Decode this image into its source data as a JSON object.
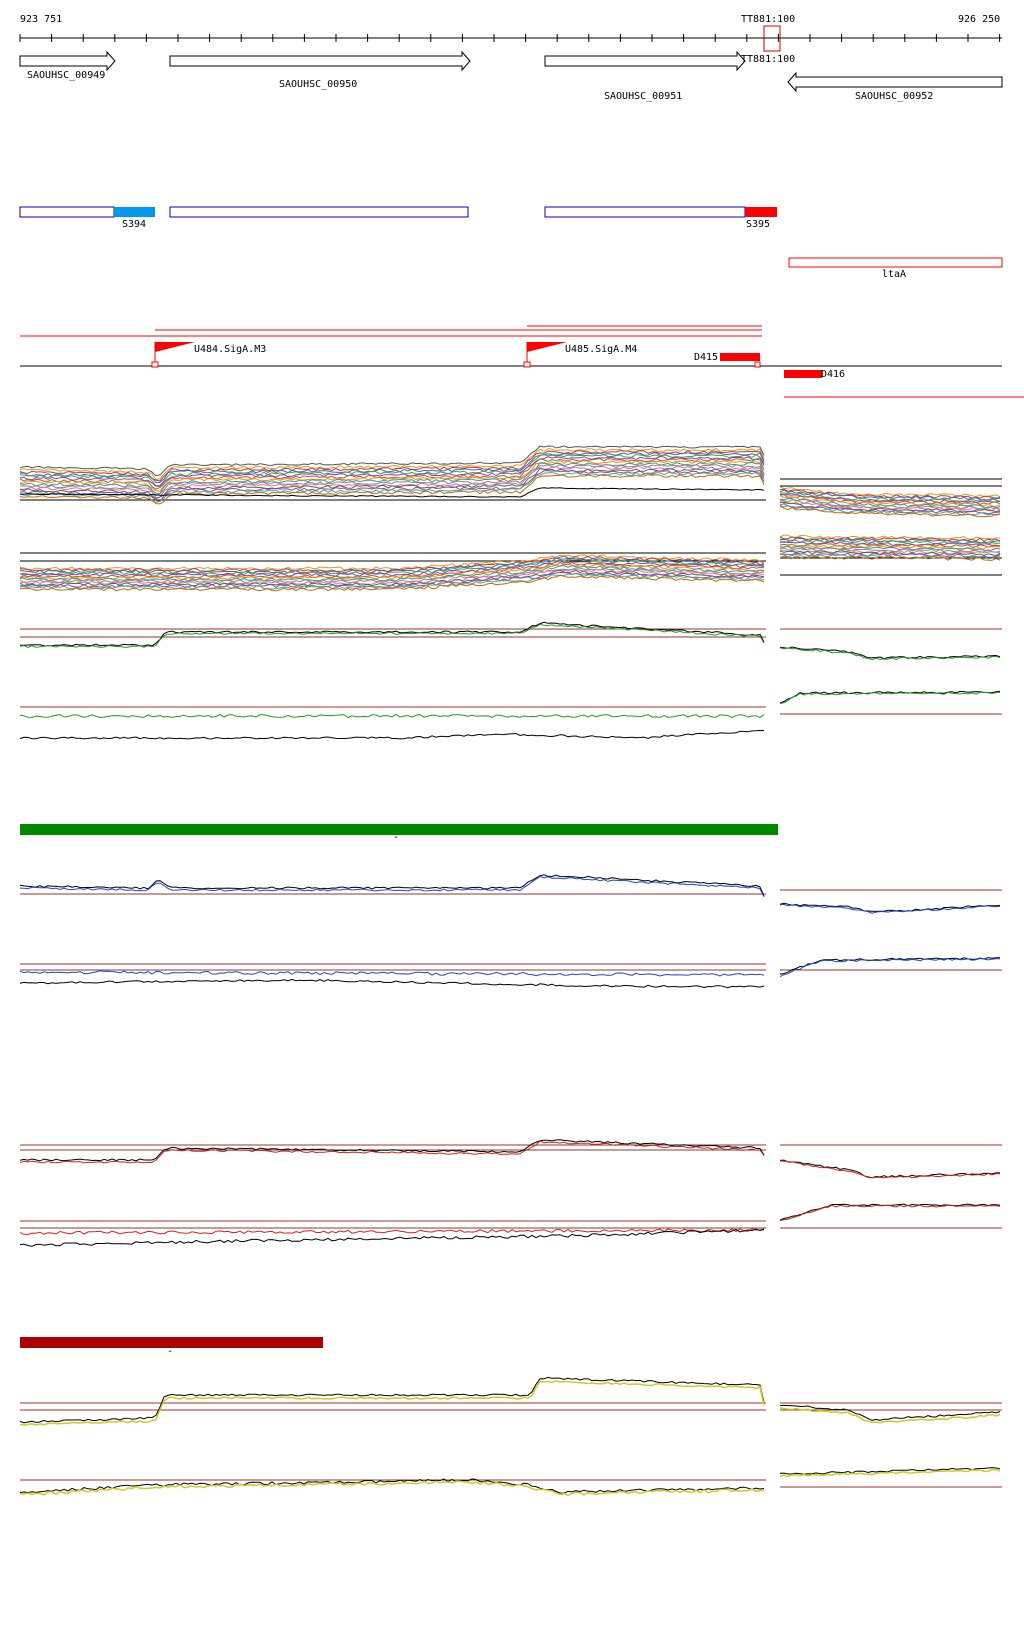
{
  "coordinates": {
    "start": "923 751",
    "end": "926 250",
    "terminator_top": "TT881:100",
    "terminator_bottom": "TT881:100"
  },
  "genes": [
    {
      "label": "SAOUHSC_00949",
      "strand": "+"
    },
    {
      "label": "SAOUHSC_00950",
      "strand": "+"
    },
    {
      "label": "SAOUHSC_00951",
      "strand": "+"
    },
    {
      "label": "SAOUHSC_00952",
      "strand": "-"
    }
  ],
  "segments": [
    {
      "label": "S394",
      "color": "#0099ee"
    },
    {
      "label": "S395",
      "color": "#ff0000"
    },
    {
      "label": "ltaA",
      "color": "#ff0000"
    }
  ],
  "promoters": [
    {
      "label": "U484.SigA.M3"
    },
    {
      "label": "U485.SigA.M4"
    }
  ],
  "downregulated": [
    {
      "label": "D415"
    },
    {
      "label": "D416"
    }
  ],
  "condition_bars": [
    {
      "label": "-",
      "color": "#008800"
    },
    {
      "label": "-",
      "color": "#aa0000"
    }
  ],
  "colors": {
    "gene_outline": "#000000",
    "segment_outline": "#0000cc",
    "threshold": "#993333",
    "green_series": "#229922",
    "blue_series": "#2244cc",
    "red_series": "#cc2222",
    "yellow_series": "#cccc22"
  }
}
